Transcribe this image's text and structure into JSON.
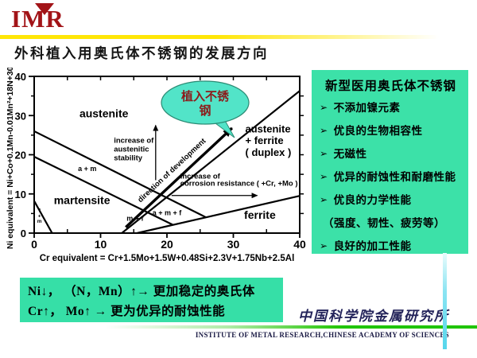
{
  "slide": {
    "logo": {
      "text": "IMR"
    },
    "title": "外科植入用奥氏体不锈钢的发展方向",
    "callout": {
      "line1": "植入不锈",
      "line2": "钢"
    },
    "right_panel": {
      "heading": "新型医用奥氏体不锈钢",
      "bullet_char": "➢",
      "bullets": [
        {
          "bulleted": true,
          "text": "不添加镍元素"
        },
        {
          "bulleted": true,
          "text": "优良的生物相容性"
        },
        {
          "bulleted": true,
          "text": "无磁性"
        },
        {
          "bulleted": true,
          "text": "优异的耐蚀性和耐磨性能"
        },
        {
          "bulleted": true,
          "text": "优良的力学性能"
        },
        {
          "bulleted": false,
          "text": "（强度、韧性、疲劳等）"
        },
        {
          "bulleted": true,
          "text": "良好的加工性能"
        }
      ]
    },
    "summary_box": {
      "lines": [
        "Ni↓， （N，Mn）↑→ 更加稳定的奥氏体",
        "Cr↑， Mo↑ → 更为优异的耐蚀性能"
      ]
    },
    "footer": {
      "institute_cn": "中国科学院金属研究所",
      "institute_en": "INSTITUTE OF METAL RESEARCH,CHINESE ACADEMY OF SCIENCES"
    },
    "colors": {
      "panel_green": "#3CE1A8",
      "summary_green": "#36DFA7",
      "bubble_teal": "#52E4C8",
      "bubble_text_red": "#8C1B1B",
      "accent_yellow": "#FFE606",
      "footer_green_line": "#1FC400",
      "vertical_cyan_line": "#55D6EC",
      "logo_red": "#A21418",
      "footer_navy": "#23235A"
    }
  },
  "chart_data": {
    "type": "line",
    "title": "",
    "xlabel": "Cr equivalent = Cr+1.5Mo+1.5W+0.48Si+2.3V+1.75Nb+2.5Al",
    "ylabel": "Ni equivalent = Ni+Co+0.1Mn-0.01Mn²+18N+30C",
    "xlim": [
      0,
      40
    ],
    "ylim": [
      0,
      40
    ],
    "xticks": [
      0,
      10,
      20,
      30,
      40
    ],
    "yticks": [
      0,
      10,
      20,
      30,
      40
    ],
    "minor_tick_step": 5,
    "grid": false,
    "boundary_lines": [
      {
        "name": "austenite-lower-boundary",
        "points": [
          [
            0,
            26
          ],
          [
            25.9,
            4.0
          ]
        ]
      },
      {
        "name": "martensite-upper-boundary",
        "points": [
          [
            0,
            19.5
          ],
          [
            20.9,
            2.1
          ]
        ]
      },
      {
        "name": "duplex-boundary",
        "points": [
          [
            13.2,
            0
          ],
          [
            40,
            36.3
          ]
        ]
      },
      {
        "name": "ferrite-upper-boundary",
        "points": [
          [
            15.5,
            0
          ],
          [
            40,
            9.5
          ]
        ]
      },
      {
        "name": "ferrite-martensite-corner",
        "points": [
          [
            0,
            8.2
          ],
          [
            2.7,
            0
          ]
        ]
      }
    ],
    "region_labels": [
      {
        "text": "austenite",
        "x": 10.5,
        "y": 29.5,
        "size": 14
      },
      {
        "text": "martensite",
        "x": 7.2,
        "y": 7.4,
        "size": 14
      },
      {
        "text": "ferrite",
        "x": 34,
        "y": 3.7,
        "size": 14
      },
      {
        "text": "a + m",
        "x": 8,
        "y": 15.8,
        "size": 9
      },
      {
        "text": "a + m + f",
        "x": 20,
        "y": 4.6,
        "size": 9
      },
      {
        "text": "m + f",
        "x": 15.2,
        "y": 3.1,
        "size": 9
      }
    ],
    "duplex_label": {
      "lines": [
        "austenite",
        "+ ferrite",
        "( duplex )"
      ],
      "x": 31.8,
      "ys": [
        25.7,
        22.7,
        19.7
      ],
      "size": 13
    },
    "corner_label": {
      "lines": [
        "f",
        "+",
        "m"
      ],
      "x": 0.8,
      "ys": [
        5.4,
        4.0,
        2.6
      ],
      "size": 6.5
    },
    "annotations": [
      {
        "name": "stability-note",
        "lines": [
          "increase of",
          "austenitic",
          "stability"
        ],
        "x": 12.0,
        "ys": [
          23.0,
          20.8,
          18.6
        ],
        "size": 9.5
      },
      {
        "name": "corrosion-note",
        "lines": [
          "increase of",
          "corrosion resistance ( +Cr, +Mo )"
        ],
        "x": 22.0,
        "ys": [
          13.9,
          12.1
        ],
        "size": 9.5
      }
    ],
    "arrows": [
      {
        "name": "austenitic-stability-arrow",
        "from": [
          18.3,
          13.5
        ],
        "to": [
          18.3,
          27.5
        ],
        "thick": false,
        "label": ""
      },
      {
        "name": "corrosion-resistance-arrow",
        "from": [
          20.7,
          9.6
        ],
        "to": [
          33.6,
          9.6
        ],
        "thick": false,
        "label": ""
      },
      {
        "name": "development-direction-arrow",
        "from": [
          13.8,
          1.5
        ],
        "to": [
          29.8,
          26.8
        ],
        "thick": true,
        "label": "direction of development"
      }
    ]
  }
}
